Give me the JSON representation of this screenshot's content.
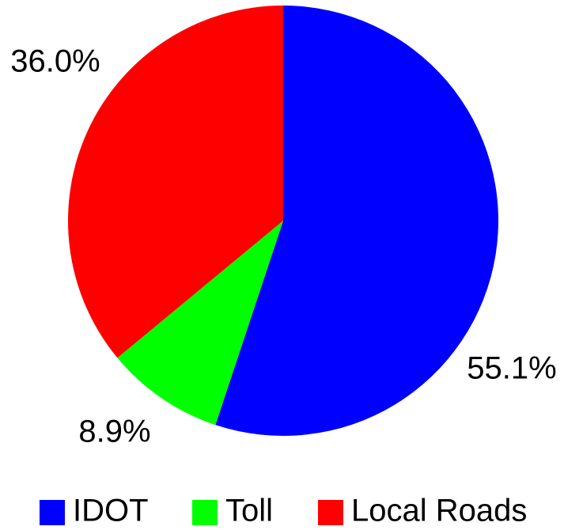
{
  "chart_data": {
    "type": "pie",
    "categories": [
      "IDOT",
      "Toll",
      "Local Roads"
    ],
    "values": [
      55.1,
      8.9,
      36.0
    ],
    "value_labels": [
      "55.1%",
      "8.9%",
      "36.0%"
    ],
    "colors": [
      "#0000ff",
      "#00ff00",
      "#ff0000"
    ],
    "legend": "bottom"
  }
}
